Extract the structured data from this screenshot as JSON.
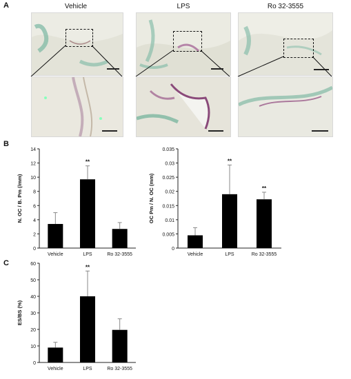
{
  "panel_labels": {
    "a": "A",
    "b": "B",
    "c": "C"
  },
  "images": {
    "titles": [
      "Vehicle",
      "LPS",
      "Ro 32-3555"
    ]
  },
  "chart_data": [
    {
      "type": "bar",
      "panel": "B",
      "categories": [
        "Vehicle",
        "LPS",
        "Ro 32-3555"
      ],
      "values": [
        3.4,
        9.7,
        2.7
      ],
      "errors": [
        1.6,
        1.9,
        0.9
      ],
      "significance": [
        "",
        "**",
        ""
      ],
      "ylabel": "N. OC / B. Pm (/mm)",
      "ylim": [
        0,
        14
      ],
      "yticks": [
        "0",
        "2",
        "4",
        "6",
        "8",
        "10",
        "12",
        "14"
      ]
    },
    {
      "type": "bar",
      "panel": "B",
      "categories": [
        "Vehicle",
        "LPS",
        "Ro 32-3555"
      ],
      "values": [
        0.0045,
        0.019,
        0.0172
      ],
      "errors": [
        0.0027,
        0.0103,
        0.0025
      ],
      "significance": [
        "",
        "**",
        "**"
      ],
      "ylabel": "OC Pm / N. OC (mm)",
      "ylim": [
        0,
        0.035
      ],
      "yticks": [
        "0",
        "0.005",
        "0.01",
        "0.015",
        "0.02",
        "0.025",
        "0.03",
        "0.035"
      ]
    },
    {
      "type": "bar",
      "panel": "C",
      "categories": [
        "Vehicle",
        "LPS",
        "Ro 32-3555"
      ],
      "values": [
        9,
        40,
        19.7
      ],
      "errors": [
        3.2,
        15.3,
        6.7
      ],
      "significance": [
        "",
        "**",
        ""
      ],
      "ylabel": "ES/BS (%)",
      "ylim": [
        0,
        60
      ],
      "yticks": [
        "0",
        "10",
        "20",
        "30",
        "40",
        "50",
        "60"
      ]
    }
  ]
}
